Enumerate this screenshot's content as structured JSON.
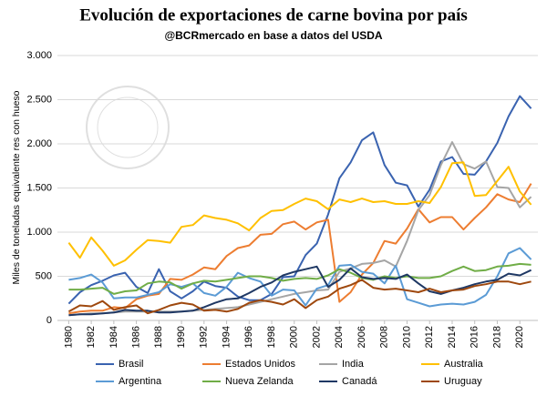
{
  "chart_data": {
    "type": "line",
    "title": "Evolución de exportaciones de carne bovina por país",
    "subtitle": "@BCRmercado  en base a datos del USDA",
    "y_label": "Miles de toneladas equivalente res con hueso",
    "x": [
      1980,
      1981,
      1982,
      1983,
      1984,
      1985,
      1986,
      1987,
      1988,
      1989,
      1990,
      1991,
      1992,
      1993,
      1994,
      1995,
      1996,
      1997,
      1998,
      1999,
      2000,
      2001,
      2002,
      2003,
      2004,
      2005,
      2006,
      2007,
      2008,
      2009,
      2010,
      2011,
      2012,
      2013,
      2014,
      2015,
      2016,
      2017,
      2018,
      2019,
      2020,
      2021
    ],
    "xlim": [
      1979,
      2021.6
    ],
    "xticks": [
      1980,
      1982,
      1984,
      1986,
      1988,
      1990,
      1992,
      1994,
      1996,
      1998,
      2000,
      2002,
      2004,
      2006,
      2008,
      2010,
      2012,
      2014,
      2016,
      2018,
      2020
    ],
    "ylim": [
      0,
      3000
    ],
    "yticks": [
      0,
      {
        "value": 500,
        "label": "500"
      },
      {
        "value": 1000,
        "label": "1.000"
      },
      {
        "value": 1500,
        "label": "1.500"
      },
      {
        "value": 2000,
        "label": "2.000"
      },
      {
        "value": 2500,
        "label": "2.500"
      },
      {
        "value": 3000,
        "label": "3.000"
      }
    ],
    "grid": true,
    "series": [
      {
        "name": "Brasil",
        "color": "#3a63b0",
        "values": [
          190,
          320,
          400,
          450,
          510,
          540,
          380,
          310,
          580,
          330,
          250,
          330,
          440,
          390,
          370,
          270,
          230,
          230,
          300,
          490,
          500,
          740,
          870,
          1200,
          1610,
          1790,
          2040,
          2130,
          1760,
          1560,
          1530,
          1290,
          1480,
          1800,
          1850,
          1660,
          1650,
          1800,
          2010,
          2310,
          2540,
          2400
        ]
      },
      {
        "name": "Estados Unidos",
        "color": "#ed7d31",
        "values": [
          80,
          100,
          110,
          110,
          150,
          140,
          240,
          280,
          300,
          470,
          460,
          520,
          600,
          580,
          730,
          820,
          850,
          970,
          980,
          1090,
          1120,
          1030,
          1110,
          1140,
          210,
          320,
          520,
          650,
          900,
          870,
          1040,
          1260,
          1110,
          1170,
          1170,
          1030,
          1160,
          1280,
          1430,
          1370,
          1340,
          1550
        ]
      },
      {
        "name": "India",
        "color": "#a5a5a5",
        "values": [
          60,
          70,
          80,
          80,
          90,
          100,
          100,
          100,
          100,
          100,
          100,
          110,
          120,
          130,
          140,
          150,
          180,
          210,
          240,
          270,
          300,
          320,
          340,
          350,
          550,
          590,
          640,
          650,
          680,
          610,
          900,
          1250,
          1420,
          1760,
          2020,
          1770,
          1720,
          1800,
          1510,
          1500,
          1280,
          1400
        ]
      },
      {
        "name": "Australia",
        "color": "#ffc000",
        "values": [
          880,
          710,
          940,
          790,
          620,
          680,
          800,
          910,
          900,
          880,
          1060,
          1080,
          1190,
          1160,
          1140,
          1100,
          1020,
          1160,
          1240,
          1250,
          1320,
          1380,
          1350,
          1260,
          1370,
          1340,
          1380,
          1340,
          1350,
          1320,
          1320,
          1350,
          1330,
          1510,
          1780,
          1790,
          1410,
          1420,
          1580,
          1740,
          1460,
          1310
        ]
      },
      {
        "name": "Argentina",
        "color": "#5b9bd5",
        "values": [
          460,
          480,
          520,
          430,
          250,
          260,
          260,
          290,
          320,
          410,
          380,
          420,
          310,
          280,
          380,
          540,
          480,
          440,
          280,
          350,
          340,
          170,
          360,
          400,
          620,
          630,
          550,
          530,
          420,
          620,
          240,
          200,
          160,
          180,
          190,
          180,
          210,
          290,
          500,
          760,
          820,
          690
        ]
      },
      {
        "name": "Nueva Zelanda",
        "color": "#70ad47",
        "values": [
          350,
          350,
          360,
          370,
          300,
          330,
          340,
          420,
          440,
          430,
          360,
          420,
          450,
          440,
          460,
          480,
          500,
          500,
          480,
          450,
          470,
          480,
          470,
          510,
          580,
          540,
          480,
          460,
          500,
          480,
          500,
          480,
          480,
          500,
          560,
          610,
          560,
          570,
          610,
          620,
          640,
          630
        ]
      },
      {
        "name": "Canadá",
        "color": "#1f3864",
        "values": [
          60,
          70,
          70,
          80,
          90,
          120,
          110,
          110,
          90,
          90,
          100,
          110,
          150,
          200,
          240,
          250,
          310,
          380,
          430,
          510,
          550,
          580,
          610,
          380,
          460,
          590,
          490,
          470,
          480,
          470,
          520,
          420,
          330,
          300,
          340,
          370,
          410,
          440,
          460,
          530,
          510,
          570
        ]
      },
      {
        "name": "Uruguay",
        "color": "#9e480e",
        "values": [
          100,
          170,
          160,
          220,
          120,
          150,
          170,
          80,
          120,
          170,
          200,
          180,
          110,
          120,
          100,
          130,
          200,
          230,
          210,
          180,
          240,
          140,
          230,
          270,
          360,
          400,
          460,
          370,
          350,
          360,
          340,
          320,
          360,
          320,
          340,
          350,
          390,
          410,
          440,
          440,
          410,
          440
        ]
      }
    ]
  }
}
